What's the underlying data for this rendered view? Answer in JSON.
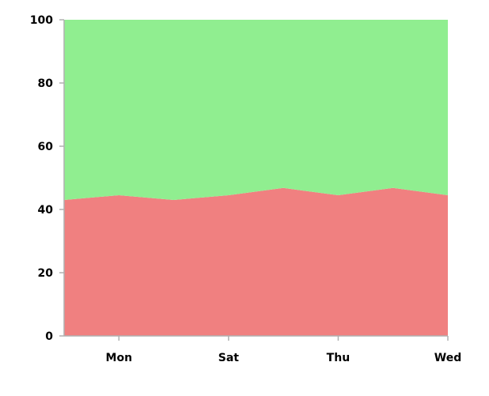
{
  "chart_data": {
    "type": "area",
    "stacked": true,
    "title": "",
    "xlabel": "",
    "ylabel": "",
    "ylim": [
      0,
      100
    ],
    "yticks": [
      0,
      20,
      40,
      60,
      80,
      100
    ],
    "x_points": 8,
    "xtick_labels": [
      {
        "index": 1,
        "label": "Mon"
      },
      {
        "index": 3,
        "label": "Sat"
      },
      {
        "index": 5,
        "label": "Thu"
      },
      {
        "index": 7,
        "label": "Wed"
      }
    ],
    "series": [
      {
        "values": [
          43,
          44.5,
          43,
          44.5,
          46.8,
          44.5,
          46.8,
          44.5
        ],
        "color": "#f08080"
      },
      {
        "values": [
          57,
          55.5,
          57,
          55.5,
          53.2,
          55.5,
          53.2,
          55.5
        ],
        "color": "#90ee90"
      }
    ],
    "grid": false,
    "legend": "none"
  }
}
